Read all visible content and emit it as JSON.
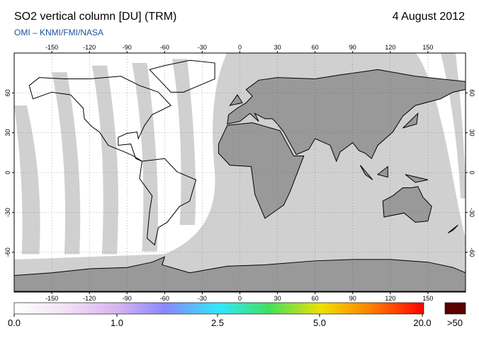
{
  "header": {
    "title": "SO2 vertical column [DU] (TRM)",
    "date": "4 August 2012",
    "subtitle": "OMI  –  KNMI/FMI/NASA"
  },
  "map": {
    "lon_ticks": [
      -150,
      -120,
      -90,
      -60,
      -30,
      0,
      30,
      60,
      90,
      120,
      150
    ],
    "lat_ticks": [
      60,
      30,
      0,
      -30,
      -60
    ]
  },
  "colorbar": {
    "labels": [
      "0.0",
      "1.0",
      "2.5",
      "5.0",
      "20.0"
    ],
    "overflow_label": ">50"
  }
}
